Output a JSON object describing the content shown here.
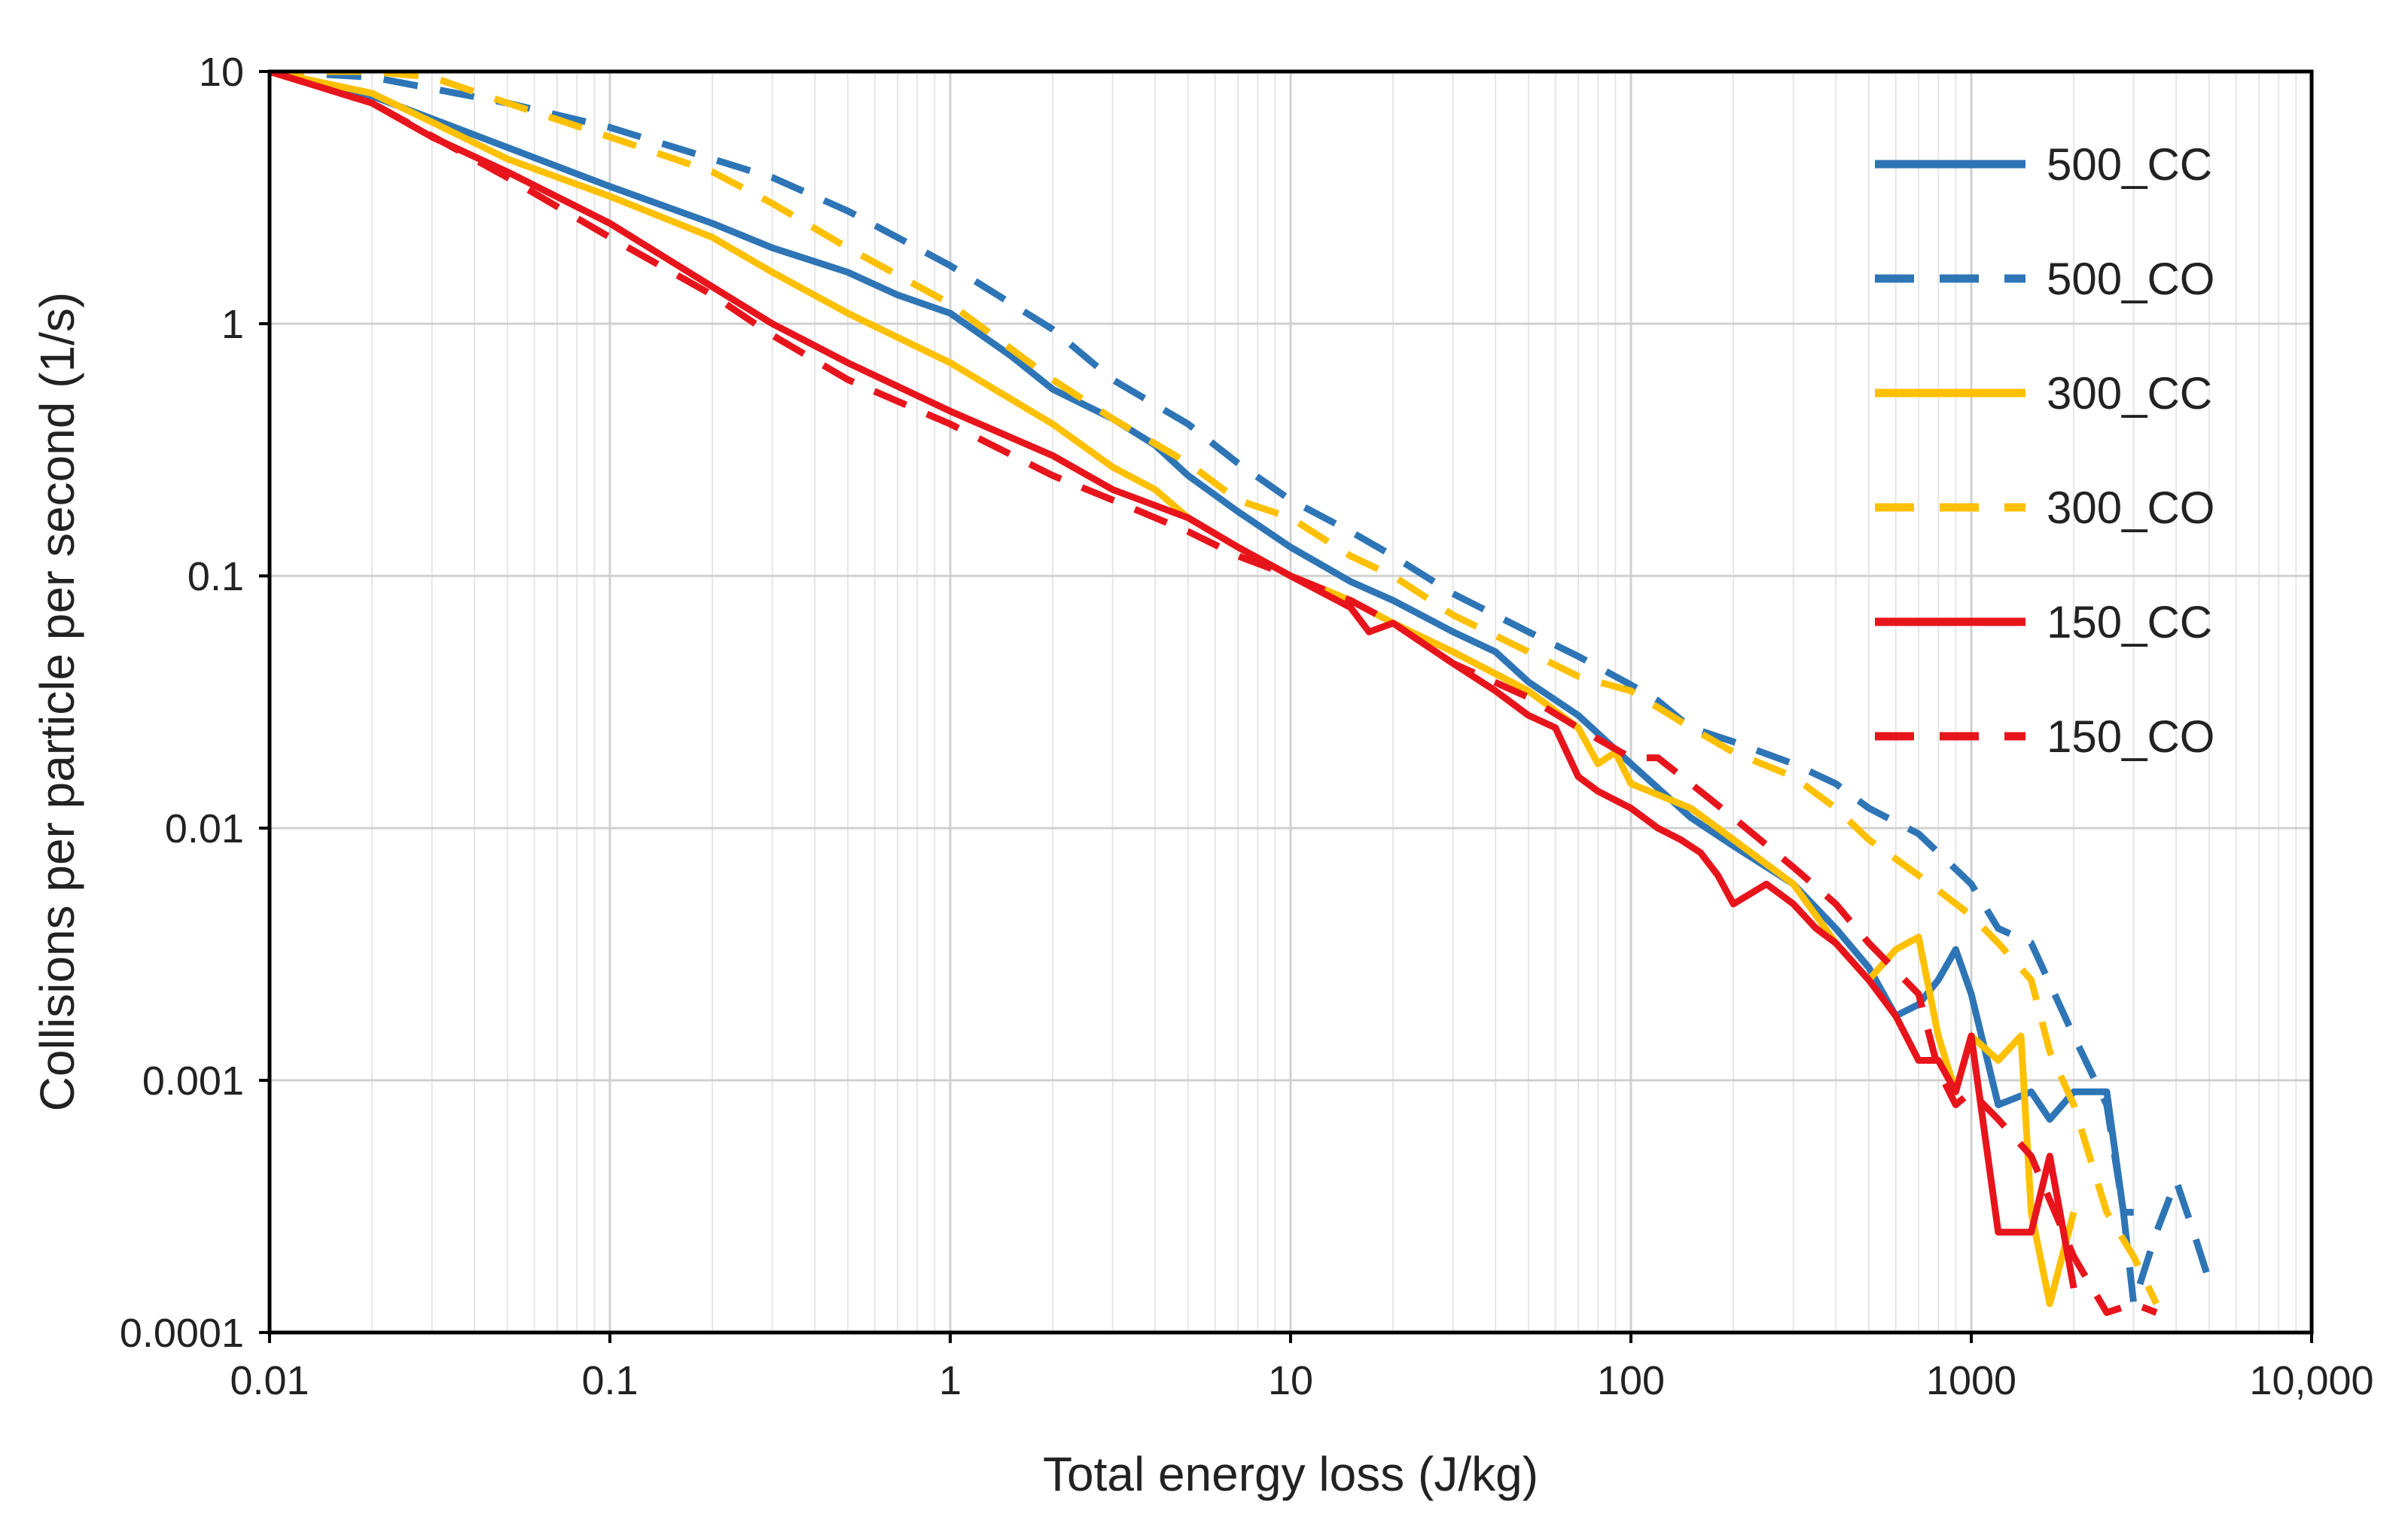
{
  "chart_data": {
    "type": "line",
    "title": "",
    "xlabel": "Total energy loss (J/kg)",
    "ylabel": "Collisions per particle per second (1/s)",
    "xscale": "log",
    "yscale": "log",
    "xlim": [
      0.01,
      10000
    ],
    "ylim": [
      0.0001,
      10
    ],
    "grid": true,
    "legend_position": "top-right",
    "x_ticks": [
      0.01,
      0.1,
      1,
      10,
      100,
      1000,
      10000
    ],
    "x_tick_labels": [
      "0.01",
      "0.1",
      "1",
      "10",
      "100",
      "1000",
      "10,000"
    ],
    "y_ticks": [
      0.0001,
      0.001,
      0.01,
      0.1,
      1,
      10
    ],
    "y_tick_labels": [
      "0.0001",
      "0.001",
      "0.01",
      "0.1",
      "1",
      "10"
    ],
    "series": [
      {
        "name": "500_CC",
        "color": "#2E75B6",
        "dash": "solid",
        "x": [
          0.01,
          0.02,
          0.03,
          0.05,
          0.1,
          0.2,
          0.3,
          0.5,
          0.7,
          1,
          1.5,
          2,
          3,
          4,
          5,
          7,
          10,
          15,
          20,
          30,
          40,
          50,
          70,
          100,
          150,
          200,
          300,
          400,
          500,
          600,
          700,
          800,
          900,
          1000,
          1200,
          1500,
          1700,
          2000,
          2500,
          2800,
          3000
        ],
        "y": [
          10,
          8,
          6.5,
          5,
          3.5,
          2.5,
          2,
          1.6,
          1.3,
          1.1,
          0.75,
          0.55,
          0.42,
          0.33,
          0.25,
          0.18,
          0.13,
          0.095,
          0.08,
          0.06,
          0.05,
          0.038,
          0.028,
          0.018,
          0.011,
          0.0085,
          0.006,
          0.004,
          0.0028,
          0.0018,
          0.002,
          0.0025,
          0.0033,
          0.0022,
          0.0008,
          0.0009,
          0.0007,
          0.0009,
          0.0009,
          0.0003,
          0.0003
        ]
      },
      {
        "name": "500_CO",
        "color": "#2E75B6",
        "dash": "dashed",
        "x": [
          0.01,
          0.02,
          0.05,
          0.1,
          0.2,
          0.3,
          0.5,
          1,
          2,
          3,
          5,
          7,
          10,
          15,
          20,
          30,
          50,
          70,
          100,
          120,
          150,
          200,
          300,
          400,
          500,
          700,
          1000,
          1200,
          1500,
          2000,
          2500,
          2800,
          3000,
          3500,
          4000,
          4500,
          5000
        ],
        "y": [
          10,
          9.5,
          7.5,
          6,
          4.5,
          3.8,
          2.8,
          1.7,
          0.95,
          0.6,
          0.4,
          0.28,
          0.2,
          0.15,
          0.12,
          0.085,
          0.06,
          0.048,
          0.037,
          0.032,
          0.025,
          0.022,
          0.018,
          0.015,
          0.012,
          0.0095,
          0.006,
          0.004,
          0.0035,
          0.0015,
          0.0008,
          0.0003,
          0.00013,
          0.00025,
          0.0004,
          0.00025,
          0.00016
        ]
      },
      {
        "name": "300_CC",
        "color": "#FFC000",
        "dash": "solid",
        "x": [
          0.01,
          0.02,
          0.03,
          0.05,
          0.1,
          0.2,
          0.3,
          0.5,
          1,
          2,
          3,
          4,
          5,
          7,
          10,
          15,
          20,
          30,
          50,
          70,
          80,
          90,
          100,
          150,
          200,
          300,
          400,
          500,
          600,
          700,
          800,
          900,
          1000,
          1200,
          1400,
          1500,
          1700,
          2000
        ],
        "y": [
          10,
          8.2,
          6.3,
          4.5,
          3.2,
          2.2,
          1.6,
          1.1,
          0.7,
          0.4,
          0.27,
          0.22,
          0.17,
          0.13,
          0.1,
          0.08,
          0.065,
          0.05,
          0.035,
          0.025,
          0.018,
          0.02,
          0.015,
          0.012,
          0.009,
          0.006,
          0.0035,
          0.0025,
          0.0033,
          0.0037,
          0.0015,
          0.0009,
          0.0015,
          0.0012,
          0.0015,
          0.0003,
          0.00013,
          0.0003
        ]
      },
      {
        "name": "300_CO",
        "color": "#FFC000",
        "dash": "dashed",
        "x": [
          0.01,
          0.02,
          0.03,
          0.05,
          0.1,
          0.2,
          0.3,
          0.5,
          1,
          2,
          3,
          5,
          7,
          10,
          15,
          20,
          30,
          50,
          70,
          100,
          150,
          200,
          300,
          400,
          500,
          700,
          1000,
          1200,
          1500,
          1700,
          2000,
          2500,
          3000,
          3500
        ],
        "y": [
          10,
          10,
          9.5,
          7.5,
          5.5,
          4,
          3,
          2,
          1.2,
          0.6,
          0.42,
          0.28,
          0.2,
          0.17,
          0.12,
          0.1,
          0.07,
          0.05,
          0.04,
          0.035,
          0.025,
          0.02,
          0.016,
          0.012,
          0.009,
          0.0065,
          0.0045,
          0.0035,
          0.0025,
          0.0013,
          0.0008,
          0.0003,
          0.0002,
          0.00013
        ]
      },
      {
        "name": "150_CC",
        "color": "#E8141C",
        "dash": "solid",
        "x": [
          0.01,
          0.02,
          0.03,
          0.05,
          0.1,
          0.2,
          0.3,
          0.5,
          1,
          2,
          3,
          5,
          7,
          10,
          15,
          17,
          20,
          30,
          40,
          50,
          60,
          70,
          80,
          100,
          120,
          140,
          160,
          180,
          200,
          250,
          300,
          350,
          400,
          500,
          600,
          700,
          800,
          900,
          1000,
          1200,
          1500,
          1700,
          2000
        ],
        "y": [
          10,
          7.5,
          5.5,
          4,
          2.5,
          1.4,
          1,
          0.7,
          0.45,
          0.3,
          0.22,
          0.17,
          0.13,
          0.1,
          0.075,
          0.06,
          0.065,
          0.045,
          0.035,
          0.028,
          0.025,
          0.016,
          0.014,
          0.012,
          0.01,
          0.009,
          0.008,
          0.0065,
          0.005,
          0.006,
          0.005,
          0.004,
          0.0035,
          0.0025,
          0.0018,
          0.0012,
          0.0012,
          0.0009,
          0.0015,
          0.00025,
          0.00025,
          0.0005,
          0.00015
        ]
      },
      {
        "name": "150_CO",
        "color": "#E8141C",
        "dash": "dashed",
        "x": [
          0.01,
          0.02,
          0.05,
          0.1,
          0.2,
          0.3,
          0.5,
          1,
          2,
          3,
          5,
          7,
          10,
          15,
          20,
          30,
          50,
          70,
          100,
          120,
          150,
          200,
          300,
          400,
          500,
          700,
          800,
          900,
          1000,
          1200,
          1500,
          2000,
          2500,
          3000,
          3500
        ],
        "y": [
          10,
          7.5,
          3.8,
          2.2,
          1.3,
          0.9,
          0.6,
          0.4,
          0.25,
          0.2,
          0.15,
          0.12,
          0.1,
          0.08,
          0.065,
          0.045,
          0.033,
          0.025,
          0.019,
          0.019,
          0.015,
          0.011,
          0.007,
          0.005,
          0.0035,
          0.0022,
          0.0011,
          0.0008,
          0.0009,
          0.0007,
          0.0005,
          0.0002,
          0.00012,
          0.00013,
          0.00012
        ]
      }
    ]
  }
}
